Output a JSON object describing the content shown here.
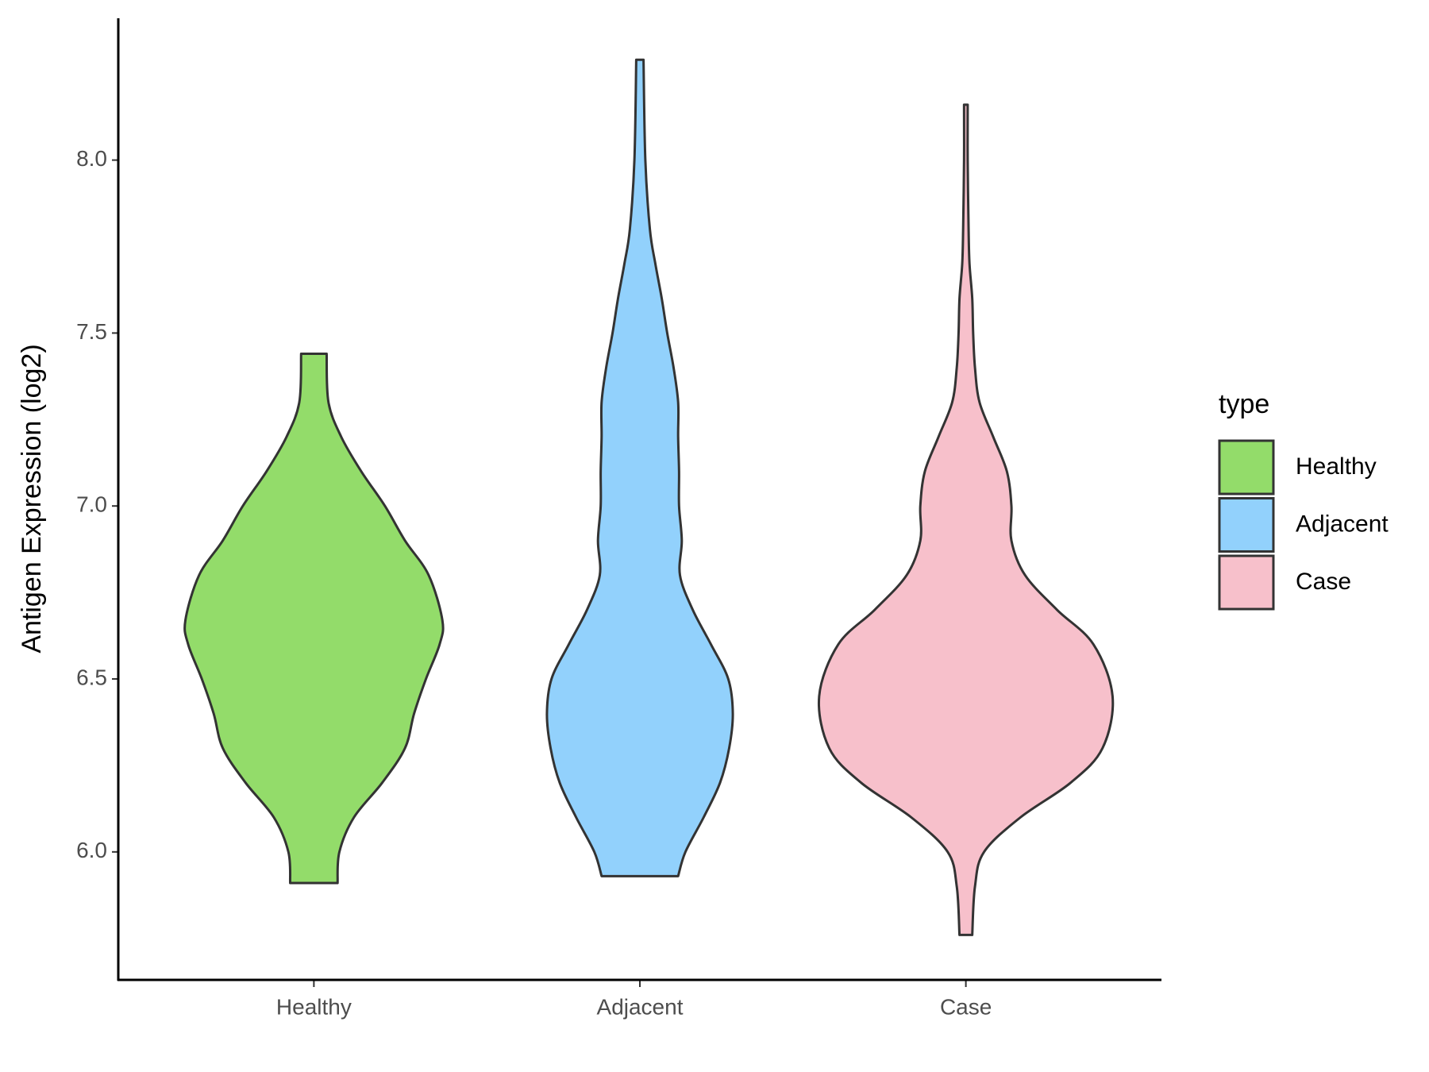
{
  "chart_data": {
    "type": "violin",
    "y_label": "Antigen Expression (log2)",
    "legend_title": "type",
    "categories": [
      "Healthy",
      "Adjacent",
      "Case"
    ],
    "ylim": [
      5.63,
      8.41
    ],
    "yticks": [
      {
        "value": 6,
        "label": "6.0"
      },
      {
        "value": 6.5,
        "label": "6.5"
      },
      {
        "value": 7,
        "label": "7.0"
      },
      {
        "value": 7.5,
        "label": "7.5"
      },
      {
        "value": 8,
        "label": "8.0"
      }
    ],
    "legend_position": "right",
    "series": [
      {
        "name": "Healthy",
        "color": "#93dc6a",
        "y": [
          5.91,
          6.0,
          6.1,
          6.2,
          6.3,
          6.4,
          6.5,
          6.6,
          6.67,
          6.8,
          6.9,
          7.0,
          7.1,
          7.2,
          7.3,
          7.44
        ],
        "density": [
          26,
          28,
          44,
          75,
          100,
          110,
          123,
          138,
          141,
          126,
          100,
          78,
          52,
          30,
          16,
          14
        ]
      },
      {
        "name": "Adjacent",
        "color": "#92d1fc",
        "y": [
          5.93,
          6.0,
          6.1,
          6.2,
          6.3,
          6.4,
          6.5,
          6.6,
          6.7,
          6.8,
          6.9,
          7.0,
          7.1,
          7.2,
          7.3,
          7.4,
          7.5,
          7.6,
          7.7,
          7.8,
          8.0,
          8.29
        ],
        "density": [
          42,
          50,
          70,
          88,
          98,
          102,
          97,
          78,
          58,
          44,
          46,
          43,
          43,
          42,
          42,
          37,
          30,
          24,
          17,
          11,
          6,
          4
        ]
      },
      {
        "name": "Case",
        "color": "#f7c0cb",
        "y": [
          5.76,
          5.9,
          6.0,
          6.1,
          6.2,
          6.3,
          6.45,
          6.6,
          6.7,
          6.8,
          6.9,
          7.0,
          7.1,
          7.2,
          7.3,
          7.4,
          7.5,
          7.6,
          7.7,
          7.8,
          8.0,
          8.16
        ],
        "density": [
          7,
          10,
          20,
          60,
          115,
          150,
          161,
          140,
          100,
          65,
          50,
          50,
          45,
          30,
          15,
          10,
          8,
          7,
          4,
          3,
          2,
          2
        ]
      }
    ]
  }
}
